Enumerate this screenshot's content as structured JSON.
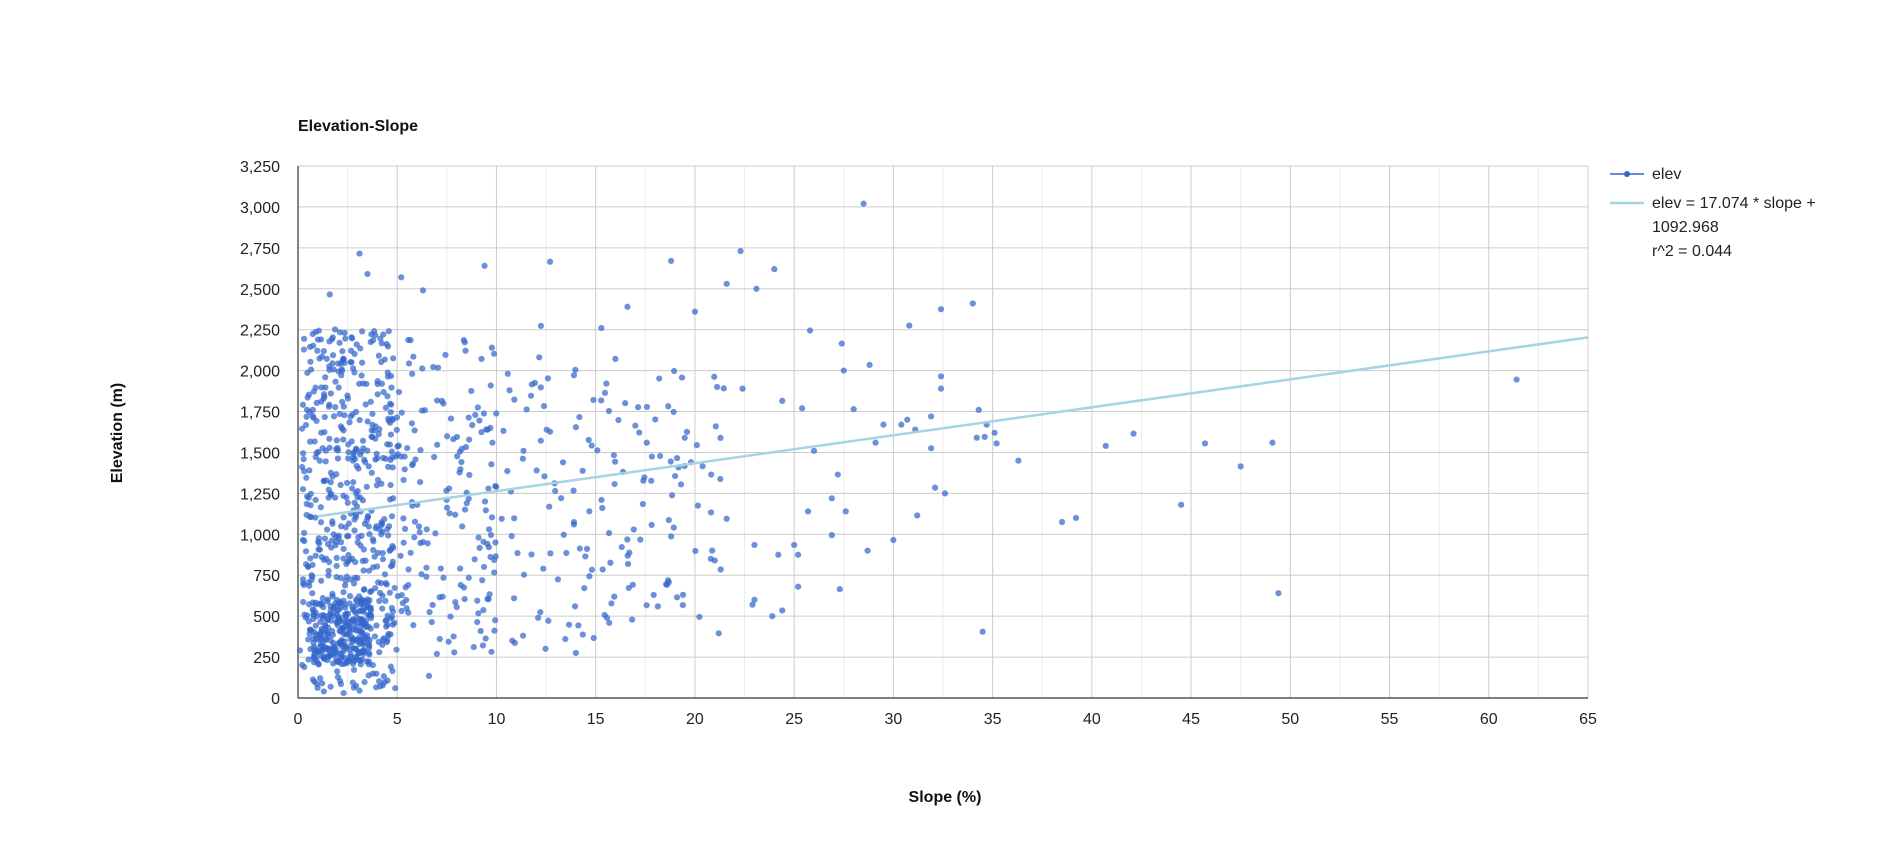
{
  "colors": {
    "points": "#3366cc",
    "trendline": "#a6d4e1",
    "grid_major": "#cccccc",
    "grid_minor": "#ebebeb",
    "axis": "#333333",
    "text": "#222222"
  },
  "chart_data": {
    "type": "scatter",
    "title": "Elevation-Slope",
    "xlabel": "Slope (%)",
    "ylabel": "Elevation (m)",
    "xlim": [
      0,
      65
    ],
    "ylim": [
      0,
      3250
    ],
    "x_ticks": [
      0,
      5,
      10,
      15,
      20,
      25,
      30,
      35,
      40,
      45,
      50,
      55,
      60,
      65
    ],
    "y_ticks": [
      0,
      250,
      500,
      750,
      1000,
      1250,
      1500,
      1750,
      2000,
      2250,
      2500,
      2750,
      3000,
      3250
    ],
    "x_tick_labels": [
      "0",
      "5",
      "10",
      "15",
      "20",
      "25",
      "30",
      "35",
      "40",
      "45",
      "50",
      "55",
      "60",
      "65"
    ],
    "y_tick_labels": [
      "0",
      "250",
      "500",
      "750",
      "1,000",
      "1,250",
      "1,500",
      "1,750",
      "2,000",
      "2,250",
      "2,500",
      "2,750",
      "3,000",
      "3,250"
    ],
    "grid": true,
    "legend_position": "right",
    "series": [
      {
        "name": "elev",
        "marker_color": "#3366cc",
        "points": [
          [
            28.5,
            3020
          ],
          [
            22.3,
            2730
          ],
          [
            24.0,
            2620
          ],
          [
            23.1,
            2500
          ],
          [
            21.6,
            2530
          ],
          [
            18.8,
            2670
          ],
          [
            12.7,
            2665
          ],
          [
            9.4,
            2640
          ],
          [
            3.1,
            2715
          ],
          [
            1.6,
            2465
          ],
          [
            3.5,
            2590
          ],
          [
            5.2,
            2570
          ],
          [
            6.3,
            2490
          ],
          [
            20.0,
            2360
          ],
          [
            16.6,
            2390
          ],
          [
            25.8,
            2245
          ],
          [
            30.8,
            2275
          ],
          [
            32.4,
            2375
          ],
          [
            34.0,
            2410
          ],
          [
            27.4,
            2165
          ],
          [
            28.8,
            2035
          ],
          [
            32.4,
            1965
          ],
          [
            32.4,
            1890
          ],
          [
            27.5,
            2000
          ],
          [
            22.4,
            1890
          ],
          [
            24.4,
            1815
          ],
          [
            25.4,
            1770
          ],
          [
            28.0,
            1765
          ],
          [
            31.9,
            1720
          ],
          [
            34.3,
            1760
          ],
          [
            34.7,
            1670
          ],
          [
            35.1,
            1620
          ],
          [
            35.2,
            1555
          ],
          [
            36.3,
            1450
          ],
          [
            34.2,
            1590
          ],
          [
            34.6,
            1595
          ],
          [
            29.5,
            1670
          ],
          [
            30.7,
            1700
          ],
          [
            30.4,
            1670
          ],
          [
            31.1,
            1640
          ],
          [
            29.1,
            1560
          ],
          [
            31.9,
            1525
          ],
          [
            32.1,
            1285
          ],
          [
            32.6,
            1250
          ],
          [
            31.2,
            1115
          ],
          [
            28.7,
            900
          ],
          [
            30.0,
            965
          ],
          [
            26.0,
            1510
          ],
          [
            27.2,
            1365
          ],
          [
            26.9,
            1220
          ],
          [
            27.6,
            1140
          ],
          [
            25.7,
            1140
          ],
          [
            26.9,
            995
          ],
          [
            25.0,
            935
          ],
          [
            25.2,
            875
          ],
          [
            24.2,
            875
          ],
          [
            25.2,
            680
          ],
          [
            27.3,
            665
          ],
          [
            23.0,
            935
          ],
          [
            23.0,
            600
          ],
          [
            22.9,
            570
          ],
          [
            23.9,
            500
          ],
          [
            24.4,
            535
          ],
          [
            21.6,
            1095
          ],
          [
            21.3,
            785
          ],
          [
            21.2,
            395
          ],
          [
            20.8,
            850
          ],
          [
            21.0,
            840
          ],
          [
            19.1,
            615
          ],
          [
            19.4,
            630
          ],
          [
            20.1,
            1545
          ],
          [
            19.8,
            1440
          ],
          [
            19.3,
            1305
          ],
          [
            40.7,
            1540
          ],
          [
            42.1,
            1615
          ],
          [
            45.7,
            1555
          ],
          [
            49.1,
            1560
          ],
          [
            47.5,
            1415
          ],
          [
            44.5,
            1180
          ],
          [
            38.5,
            1075
          ],
          [
            39.2,
            1100
          ],
          [
            49.4,
            640
          ],
          [
            34.5,
            405
          ],
          [
            61.4,
            1945
          ],
          [
            14.0,
            275
          ],
          [
            10.8,
            350
          ],
          [
            12.1,
            490
          ],
          [
            4.9,
            60
          ],
          [
            6.6,
            135
          ],
          [
            1.3,
            40
          ],
          [
            3.1,
            45
          ],
          [
            2.3,
            30
          ],
          [
            0.1,
            290
          ]
        ]
      }
    ],
    "trendline": {
      "name": "elev = 17.074 * slope + 1092.968",
      "legend_lines": [
        "elev = 17.074 * slope +",
        "1092.968",
        "r^2 = 0.044"
      ],
      "slope": 17.074,
      "intercept": 1092.968,
      "r2": 0.044,
      "x_range": [
        1.0,
        65
      ],
      "color": "#a6d4e1"
    }
  }
}
